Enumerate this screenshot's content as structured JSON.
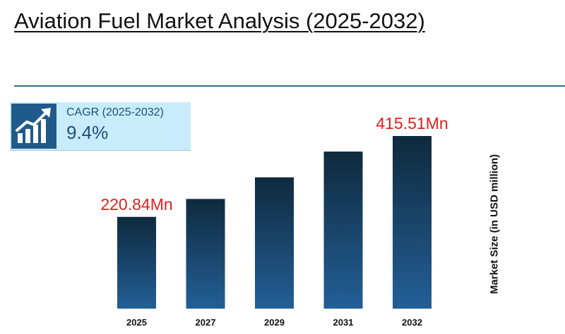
{
  "title": "Aviation Fuel Market Analysis (2025-2032)",
  "cagr": {
    "label": "CAGR (2025-2032)",
    "value": "9.4%",
    "icon": "growth-chart-icon"
  },
  "colors": {
    "bar_top": "#0f2a3d",
    "bar_bottom": "#235f97",
    "highlight_label": "#e0201b",
    "divider": "#2e6e8e",
    "cagr_box": "#c8ecfb",
    "cagr_text": "#1f4e79"
  },
  "chart_data": {
    "type": "bar",
    "categories": [
      "2025",
      "2027",
      "2029",
      "2031",
      "2032"
    ],
    "values": [
      220.84,
      264.0,
      316.0,
      378.0,
      415.51
    ],
    "data_labels": [
      "220.84Mn",
      "",
      "",
      "",
      "415.51Mn"
    ],
    "ylabel": "Market Size (in USD million)",
    "xlabel": "",
    "ylim": [
      0,
      415.51
    ],
    "grid": false,
    "legend": "none"
  }
}
